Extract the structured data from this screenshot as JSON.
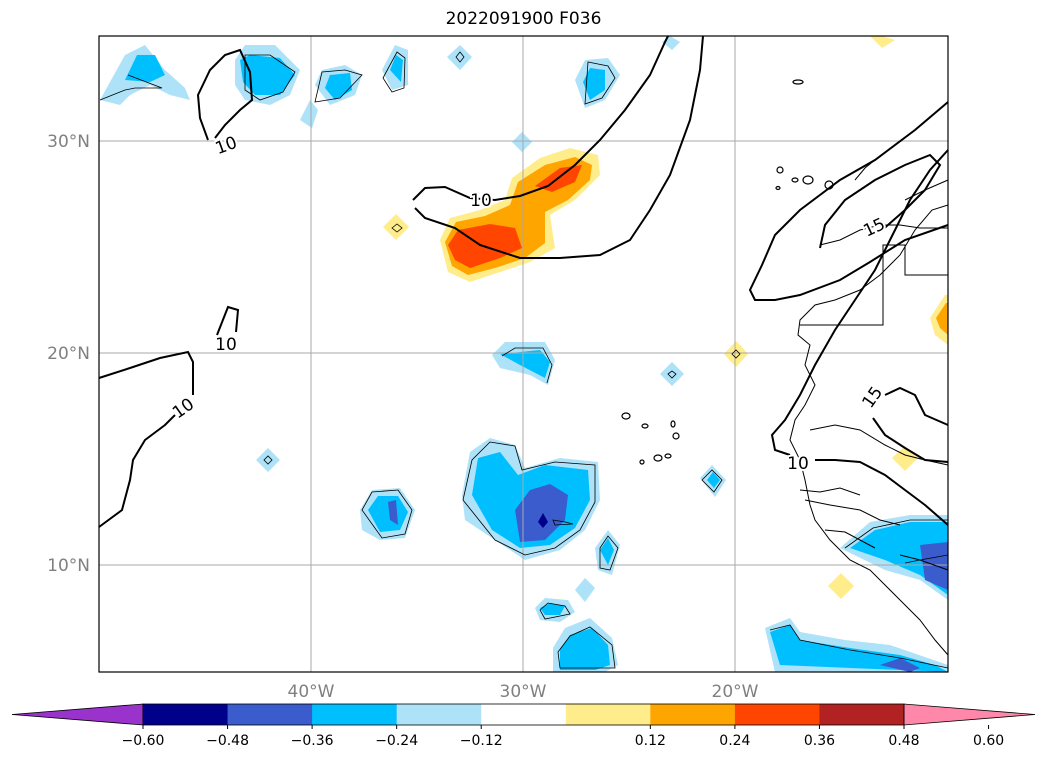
{
  "title": "2022091900 F036",
  "map": {
    "lat_labels": [
      "30°N",
      "20°N",
      "10°N"
    ],
    "lon_labels": [
      "40°W",
      "30°W",
      "20°W"
    ],
    "contour_labels": [
      "10",
      "10",
      "10",
      "10",
      "10",
      "15",
      "15"
    ]
  },
  "colorbar": {
    "tick_labels": [
      "−0.60",
      "−0.48",
      "−0.36",
      "−0.24",
      "−0.12",
      "0.12",
      "0.24",
      "0.36",
      "0.48",
      "0.60"
    ],
    "colors": [
      "#9933cc",
      "#00008b",
      "#3a5ccc",
      "#00bfff",
      "#aee2f8",
      "#ffffff",
      "#ffec8b",
      "#ffa500",
      "#ff4500",
      "#b22222",
      "#ff88aa"
    ],
    "extend": "both"
  },
  "palette": {
    "light_blue": "#aee2f8",
    "blue": "#00bfff",
    "mid_blue": "#3a5ccc",
    "dark_blue": "#00008b",
    "yellow": "#ffec8b",
    "orange": "#ffa500",
    "red_orange": "#ff4500"
  }
}
